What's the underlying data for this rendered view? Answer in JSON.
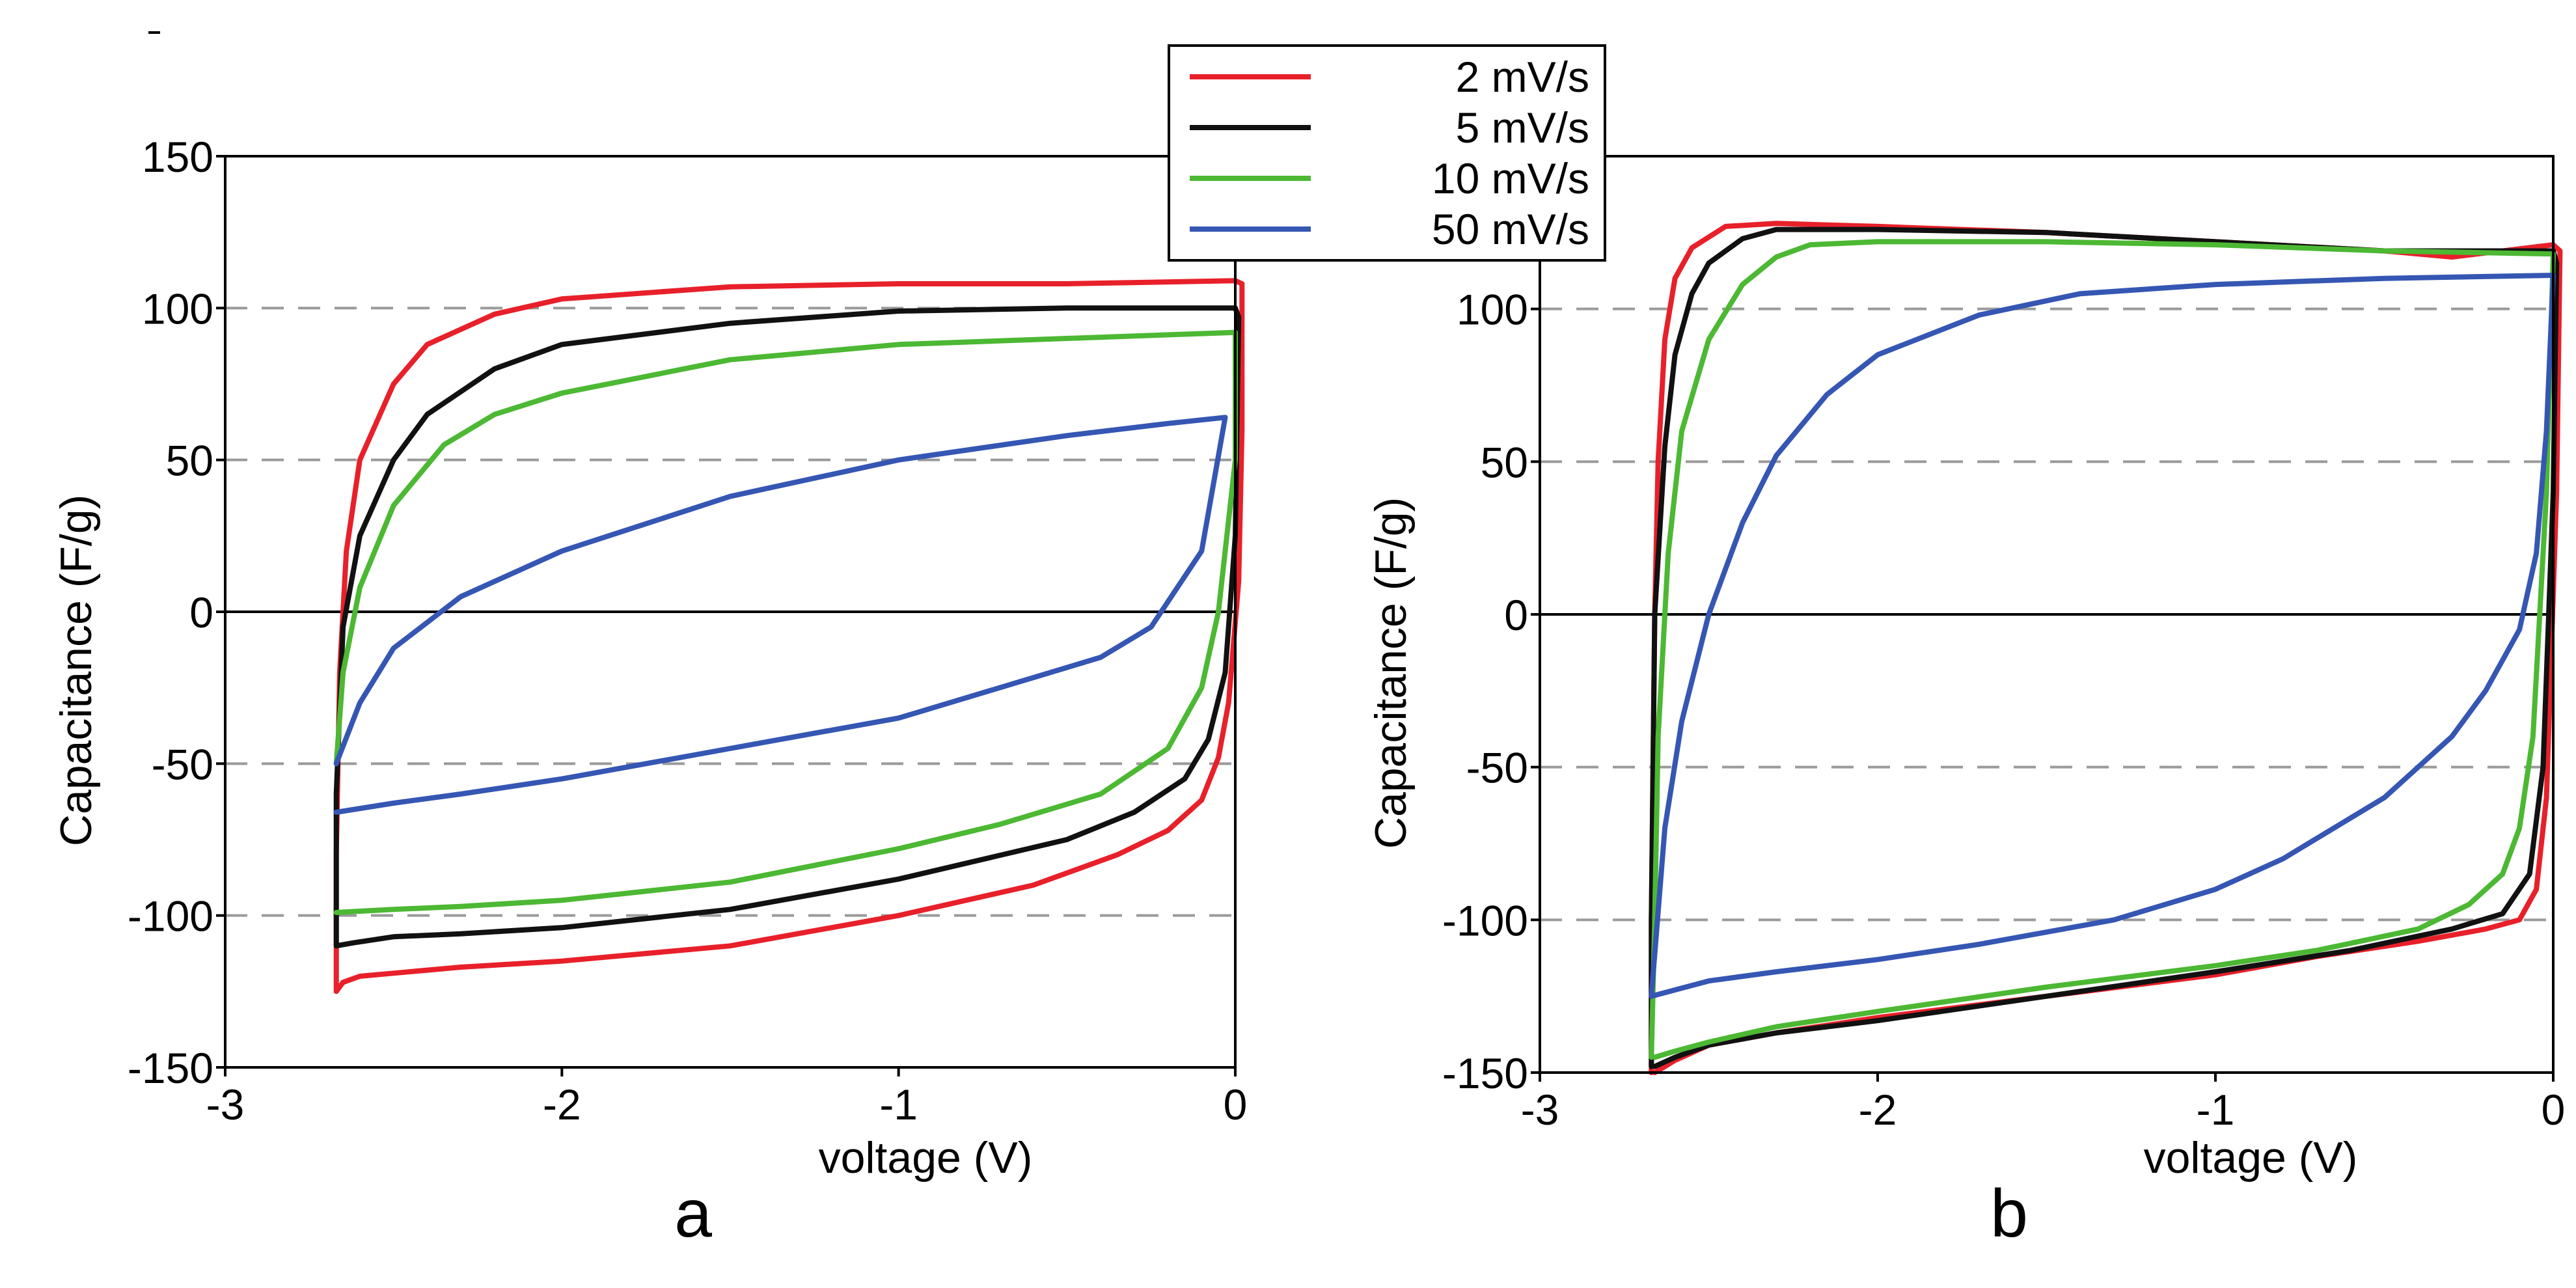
{
  "chart_data": [
    {
      "type": "line",
      "panel": "a",
      "xlabel": "voltage (V)",
      "ylabel": "Capacitance (F/g)",
      "xlim": [
        -3,
        0
      ],
      "ylim": [
        -150,
        150
      ],
      "xticks": [
        "-3",
        "-2",
        "-1",
        "0"
      ],
      "yticks": [
        "150",
        "100",
        "50",
        "0",
        "-50",
        "-100",
        "-150"
      ],
      "grid": "dashed at ±50 and ±100",
      "series": [
        {
          "name": "2 mV/s",
          "color": "#e8202a",
          "x": [
            -2.67,
            -2.67,
            -2.66,
            -2.64,
            -2.6,
            -2.5,
            -2.4,
            -2.2,
            -2.0,
            -1.5,
            -1.0,
            -0.5,
            0.0,
            0.02,
            0.02,
            0.01,
            -0.02,
            -0.05,
            -0.1,
            -0.2,
            -0.35,
            -0.6,
            -1.0,
            -1.5,
            -2.0,
            -2.3,
            -2.5,
            -2.6,
            -2.65,
            -2.67
          ],
          "y": [
            -125,
            -80,
            -20,
            20,
            50,
            75,
            88,
            98,
            103,
            107,
            108,
            108,
            109,
            108,
            60,
            10,
            -30,
            -48,
            -62,
            -72,
            -80,
            -90,
            -100,
            -110,
            -115,
            -117,
            -119,
            -120,
            -122,
            -125
          ]
        },
        {
          "name": "5 mV/s",
          "color": "#111111",
          "x": [
            -2.67,
            -2.67,
            -2.65,
            -2.6,
            -2.5,
            -2.4,
            -2.2,
            -2.0,
            -1.5,
            -1.0,
            -0.5,
            0.0,
            0.01,
            0.0,
            -0.03,
            -0.08,
            -0.15,
            -0.3,
            -0.5,
            -1.0,
            -1.5,
            -2.0,
            -2.3,
            -2.5,
            -2.62,
            -2.67
          ],
          "y": [
            -110,
            -60,
            -5,
            25,
            50,
            65,
            80,
            88,
            95,
            99,
            100,
            100,
            97,
            25,
            -20,
            -42,
            -55,
            -66,
            -75,
            -88,
            -98,
            -104,
            -106,
            -107,
            -109,
            -110
          ]
        },
        {
          "name": "10 mV/s",
          "color": "#4cb833",
          "x": [
            -2.67,
            -2.65,
            -2.6,
            -2.5,
            -2.35,
            -2.2,
            -2.0,
            -1.5,
            -1.0,
            -0.5,
            0.0,
            0.0,
            -0.05,
            -0.1,
            -0.2,
            -0.4,
            -0.7,
            -1.0,
            -1.5,
            -2.0,
            -2.3,
            -2.5,
            -2.67
          ],
          "y": [
            -50,
            -20,
            8,
            35,
            55,
            65,
            72,
            83,
            88,
            90,
            92,
            50,
            0,
            -25,
            -45,
            -60,
            -70,
            -78,
            -89,
            -95,
            -97,
            -98,
            -99
          ]
        },
        {
          "name": "50 mV/s",
          "color": "#3556b3",
          "x": [
            -2.67,
            -2.6,
            -2.5,
            -2.3,
            -2.0,
            -1.5,
            -1.0,
            -0.5,
            -0.2,
            -0.03,
            -0.1,
            -0.25,
            -0.4,
            -0.7,
            -1.0,
            -1.5,
            -2.0,
            -2.3,
            -2.5,
            -2.67
          ],
          "y": [
            -50,
            -30,
            -12,
            5,
            20,
            38,
            50,
            58,
            62,
            64,
            20,
            -5,
            -15,
            -25,
            -35,
            -45,
            -55,
            -60,
            -63,
            -66
          ]
        }
      ]
    },
    {
      "type": "line",
      "panel": "b",
      "xlabel": "voltage (V)",
      "ylabel": "Capacitance (F/g)",
      "xlim": [
        -3,
        0
      ],
      "ylim": [
        -150,
        150
      ],
      "xticks": [
        "-3",
        "-2",
        "-1",
        "0"
      ],
      "yticks": [
        "100",
        "50",
        "0",
        "-50",
        "-100",
        "-150"
      ],
      "grid": "dashed at ±50 and ±100",
      "series": [
        {
          "name": "2 mV/s",
          "color": "#e8202a",
          "x": [
            -2.67,
            -2.67,
            -2.66,
            -2.65,
            -2.63,
            -2.6,
            -2.55,
            -2.45,
            -2.3,
            -2.0,
            -1.5,
            -1.0,
            -0.5,
            -0.3,
            0.0,
            0.02,
            0.01,
            -0.02,
            -0.05,
            -0.1,
            -0.2,
            -0.4,
            -0.7,
            -1.0,
            -1.5,
            -2.0,
            -2.3,
            -2.5,
            -2.6,
            -2.66
          ],
          "y": [
            -150,
            -100,
            0,
            50,
            90,
            110,
            120,
            127,
            128,
            127,
            125,
            122,
            119,
            117,
            121,
            119,
            40,
            -60,
            -90,
            -100,
            -103,
            -107,
            -112,
            -118,
            -125,
            -132,
            -137,
            -141,
            -146,
            -150
          ]
        },
        {
          "name": "5 mV/s",
          "color": "#111111",
          "x": [
            -2.67,
            -2.67,
            -2.66,
            -2.63,
            -2.6,
            -2.55,
            -2.5,
            -2.4,
            -2.3,
            -2.0,
            -1.5,
            -1.0,
            -0.5,
            0.0,
            0.01,
            0.0,
            -0.03,
            -0.07,
            -0.15,
            -0.3,
            -0.6,
            -1.0,
            -1.5,
            -2.0,
            -2.3,
            -2.5,
            -2.6,
            -2.66
          ],
          "y": [
            -148,
            -100,
            0,
            55,
            85,
            105,
            115,
            123,
            126,
            126,
            125,
            122,
            119,
            119,
            115,
            40,
            -50,
            -85,
            -98,
            -103,
            -110,
            -117,
            -125,
            -133,
            -137,
            -141,
            -145,
            -148
          ]
        },
        {
          "name": "10 mV/s",
          "color": "#4cb833",
          "x": [
            -2.67,
            -2.66,
            -2.65,
            -2.62,
            -2.58,
            -2.5,
            -2.4,
            -2.3,
            -2.2,
            -2.0,
            -1.5,
            -1.0,
            -0.5,
            0.0,
            -0.02,
            -0.06,
            -0.1,
            -0.15,
            -0.25,
            -0.4,
            -0.7,
            -1.0,
            -1.5,
            -2.0,
            -2.3,
            -2.5,
            -2.6,
            -2.66
          ],
          "y": [
            -145,
            -100,
            -40,
            20,
            60,
            90,
            108,
            117,
            121,
            122,
            122,
            121,
            119,
            118,
            40,
            -40,
            -70,
            -85,
            -95,
            -103,
            -110,
            -115,
            -122,
            -130,
            -135,
            -140,
            -143,
            -145
          ]
        },
        {
          "name": "50 mV/s",
          "color": "#3556b3",
          "x": [
            -2.67,
            -2.63,
            -2.58,
            -2.5,
            -2.4,
            -2.3,
            -2.15,
            -2.0,
            -1.7,
            -1.4,
            -1.0,
            -0.5,
            0.0,
            -0.02,
            -0.05,
            -0.1,
            -0.2,
            -0.3,
            -0.5,
            -0.8,
            -1.0,
            -1.3,
            -1.7,
            -2.0,
            -2.3,
            -2.5,
            -2.67
          ],
          "y": [
            -125,
            -70,
            -35,
            0,
            30,
            52,
            72,
            85,
            98,
            105,
            108,
            110,
            111,
            60,
            20,
            -5,
            -25,
            -40,
            -60,
            -80,
            -90,
            -100,
            -108,
            -113,
            -117,
            -120,
            -125
          ]
        }
      ]
    }
  ],
  "legend": [
    {
      "label": "2 mV/s",
      "color": "#e8202a"
    },
    {
      "label": "5 mV/s",
      "color": "#111111"
    },
    {
      "label": "10 mV/s",
      "color": "#4cb833"
    },
    {
      "label": "50 mV/s",
      "color": "#3556b3"
    }
  ]
}
